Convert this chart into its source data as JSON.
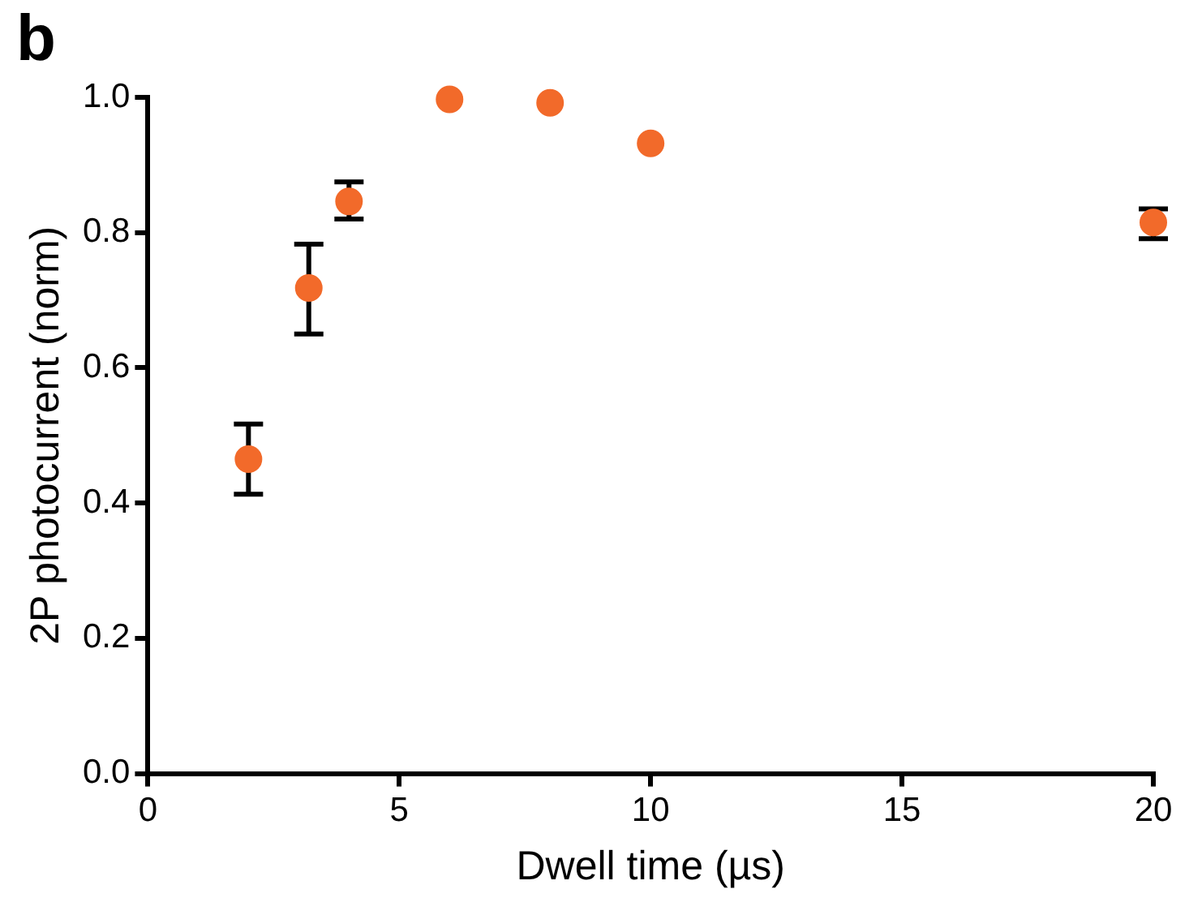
{
  "chart_data": {
    "type": "scatter",
    "xlabel": "Dwell time (µs)",
    "ylabel": "2P photocurrent (norm)",
    "annotations": [
      "b"
    ],
    "x": [
      2,
      3.2,
      4,
      6,
      8,
      10,
      20
    ],
    "values": [
      0.465,
      0.718,
      0.846,
      0.997,
      0.992,
      0.932,
      0.815
    ],
    "errors": [
      [
        0.413,
        0.517
      ],
      [
        0.65,
        0.783
      ],
      [
        0.82,
        0.875
      ],
      null,
      null,
      null,
      [
        0.791,
        0.835
      ]
    ],
    "color": "#f26a2a",
    "marker": "circle",
    "legend": false,
    "grid": false,
    "xlim": [
      0,
      20
    ],
    "xticks": [
      0,
      5,
      10,
      15,
      20
    ],
    "ylim": [
      0,
      1
    ],
    "yticks": [
      {
        "value": 0,
        "label": "0.0"
      },
      {
        "value": 0.2,
        "label": "0.2"
      },
      {
        "value": 0.4,
        "label": "0.4"
      },
      {
        "value": 0.6,
        "label": "0.6"
      },
      {
        "value": 0.8,
        "label": "0.8"
      },
      {
        "value": 1,
        "label": "1.0"
      }
    ]
  }
}
